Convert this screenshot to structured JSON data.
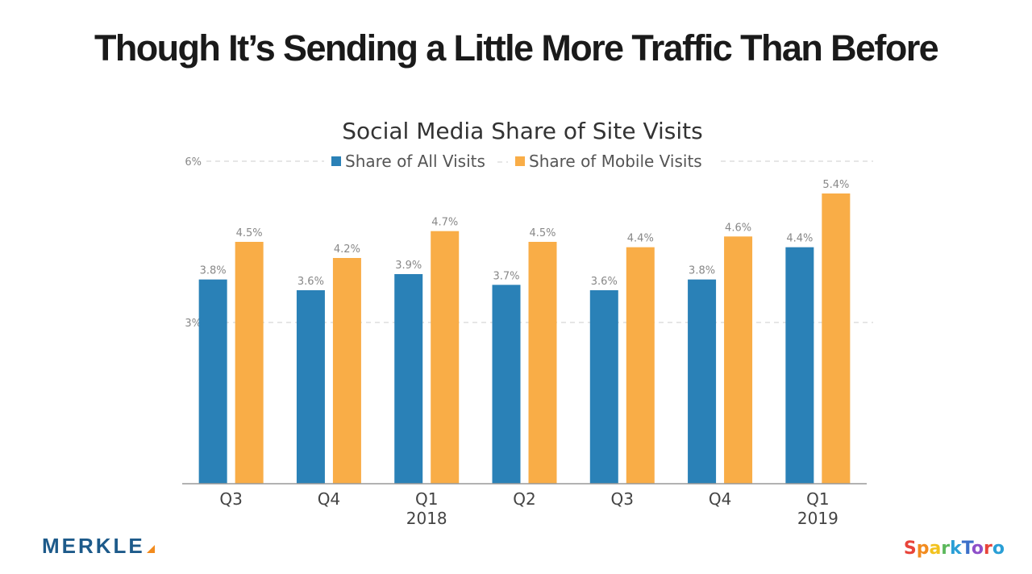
{
  "slide": {
    "title": "Though It’s Sending a Little More Traffic Than Before"
  },
  "logos": {
    "left": "MERKLE",
    "right": "SparkToro",
    "right_letter_colors": [
      "#e8443a",
      "#f28b1e",
      "#f2c21e",
      "#5cb85c",
      "#2a9fd6",
      "#3b6fc9",
      "#8e4fc9",
      "#e8443a",
      "#2a9fd6"
    ]
  },
  "chart_data": {
    "type": "bar",
    "title": "Social Media Share of Site Visits",
    "categories": [
      "Q3",
      "Q4",
      "Q1",
      "Q2",
      "Q3",
      "Q4",
      "Q1"
    ],
    "category_sublabels": [
      "",
      "",
      "2018",
      "",
      "",
      "",
      "2019"
    ],
    "series": [
      {
        "name": "Share of All Visits",
        "color": "#2a81b7",
        "values": [
          3.8,
          3.6,
          3.9,
          3.7,
          3.6,
          3.8,
          4.4
        ]
      },
      {
        "name": "Share of Mobile Visits",
        "color": "#f9ad47",
        "values": [
          4.5,
          4.2,
          4.7,
          4.5,
          4.4,
          4.6,
          5.4
        ]
      }
    ],
    "yticks": [
      "6%",
      "3%"
    ],
    "ytick_values": [
      6,
      3
    ],
    "ylim": [
      0,
      6
    ],
    "value_suffix": "%",
    "grid": true,
    "legend": "top"
  }
}
